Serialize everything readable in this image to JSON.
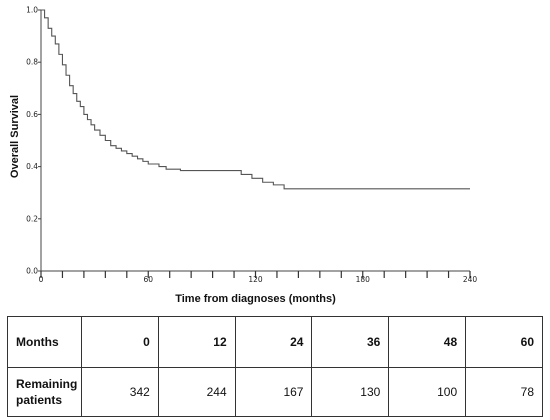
{
  "chart_data": {
    "type": "line",
    "title": "",
    "xlabel": "Time from diagnoses (months)",
    "ylabel": "Overall Survival",
    "xlim": [
      0,
      240
    ],
    "ylim": [
      0,
      1.0
    ],
    "x_ticks": [
      0,
      60,
      120,
      180,
      240
    ],
    "y_ticks": [
      "0.0",
      "0.2",
      "0.4",
      "0.6",
      "0.8",
      "1.0"
    ],
    "x_minor_step": 12,
    "grid": false,
    "series": [
      {
        "step": true,
        "x": [
          0,
          2,
          4,
          6,
          8,
          10,
          12,
          14,
          16,
          18,
          20,
          22,
          24,
          26,
          28,
          30,
          33,
          36,
          39,
          42,
          45,
          48,
          51,
          54,
          57,
          60,
          66,
          70,
          78,
          112,
          118,
          124,
          130,
          136,
          240
        ],
        "y": [
          1.0,
          0.97,
          0.93,
          0.9,
          0.87,
          0.83,
          0.79,
          0.75,
          0.71,
          0.68,
          0.65,
          0.63,
          0.6,
          0.58,
          0.56,
          0.54,
          0.52,
          0.5,
          0.48,
          0.47,
          0.46,
          0.45,
          0.44,
          0.43,
          0.42,
          0.41,
          0.4,
          0.39,
          0.385,
          0.37,
          0.355,
          0.34,
          0.33,
          0.315,
          0.315
        ]
      }
    ]
  },
  "table": {
    "header_label": "Months",
    "months": [
      "0",
      "12",
      "24",
      "36",
      "48",
      "60"
    ],
    "row_label": "Remaining patients",
    "values": [
      "342",
      "244",
      "167",
      "130",
      "100",
      "78"
    ]
  }
}
